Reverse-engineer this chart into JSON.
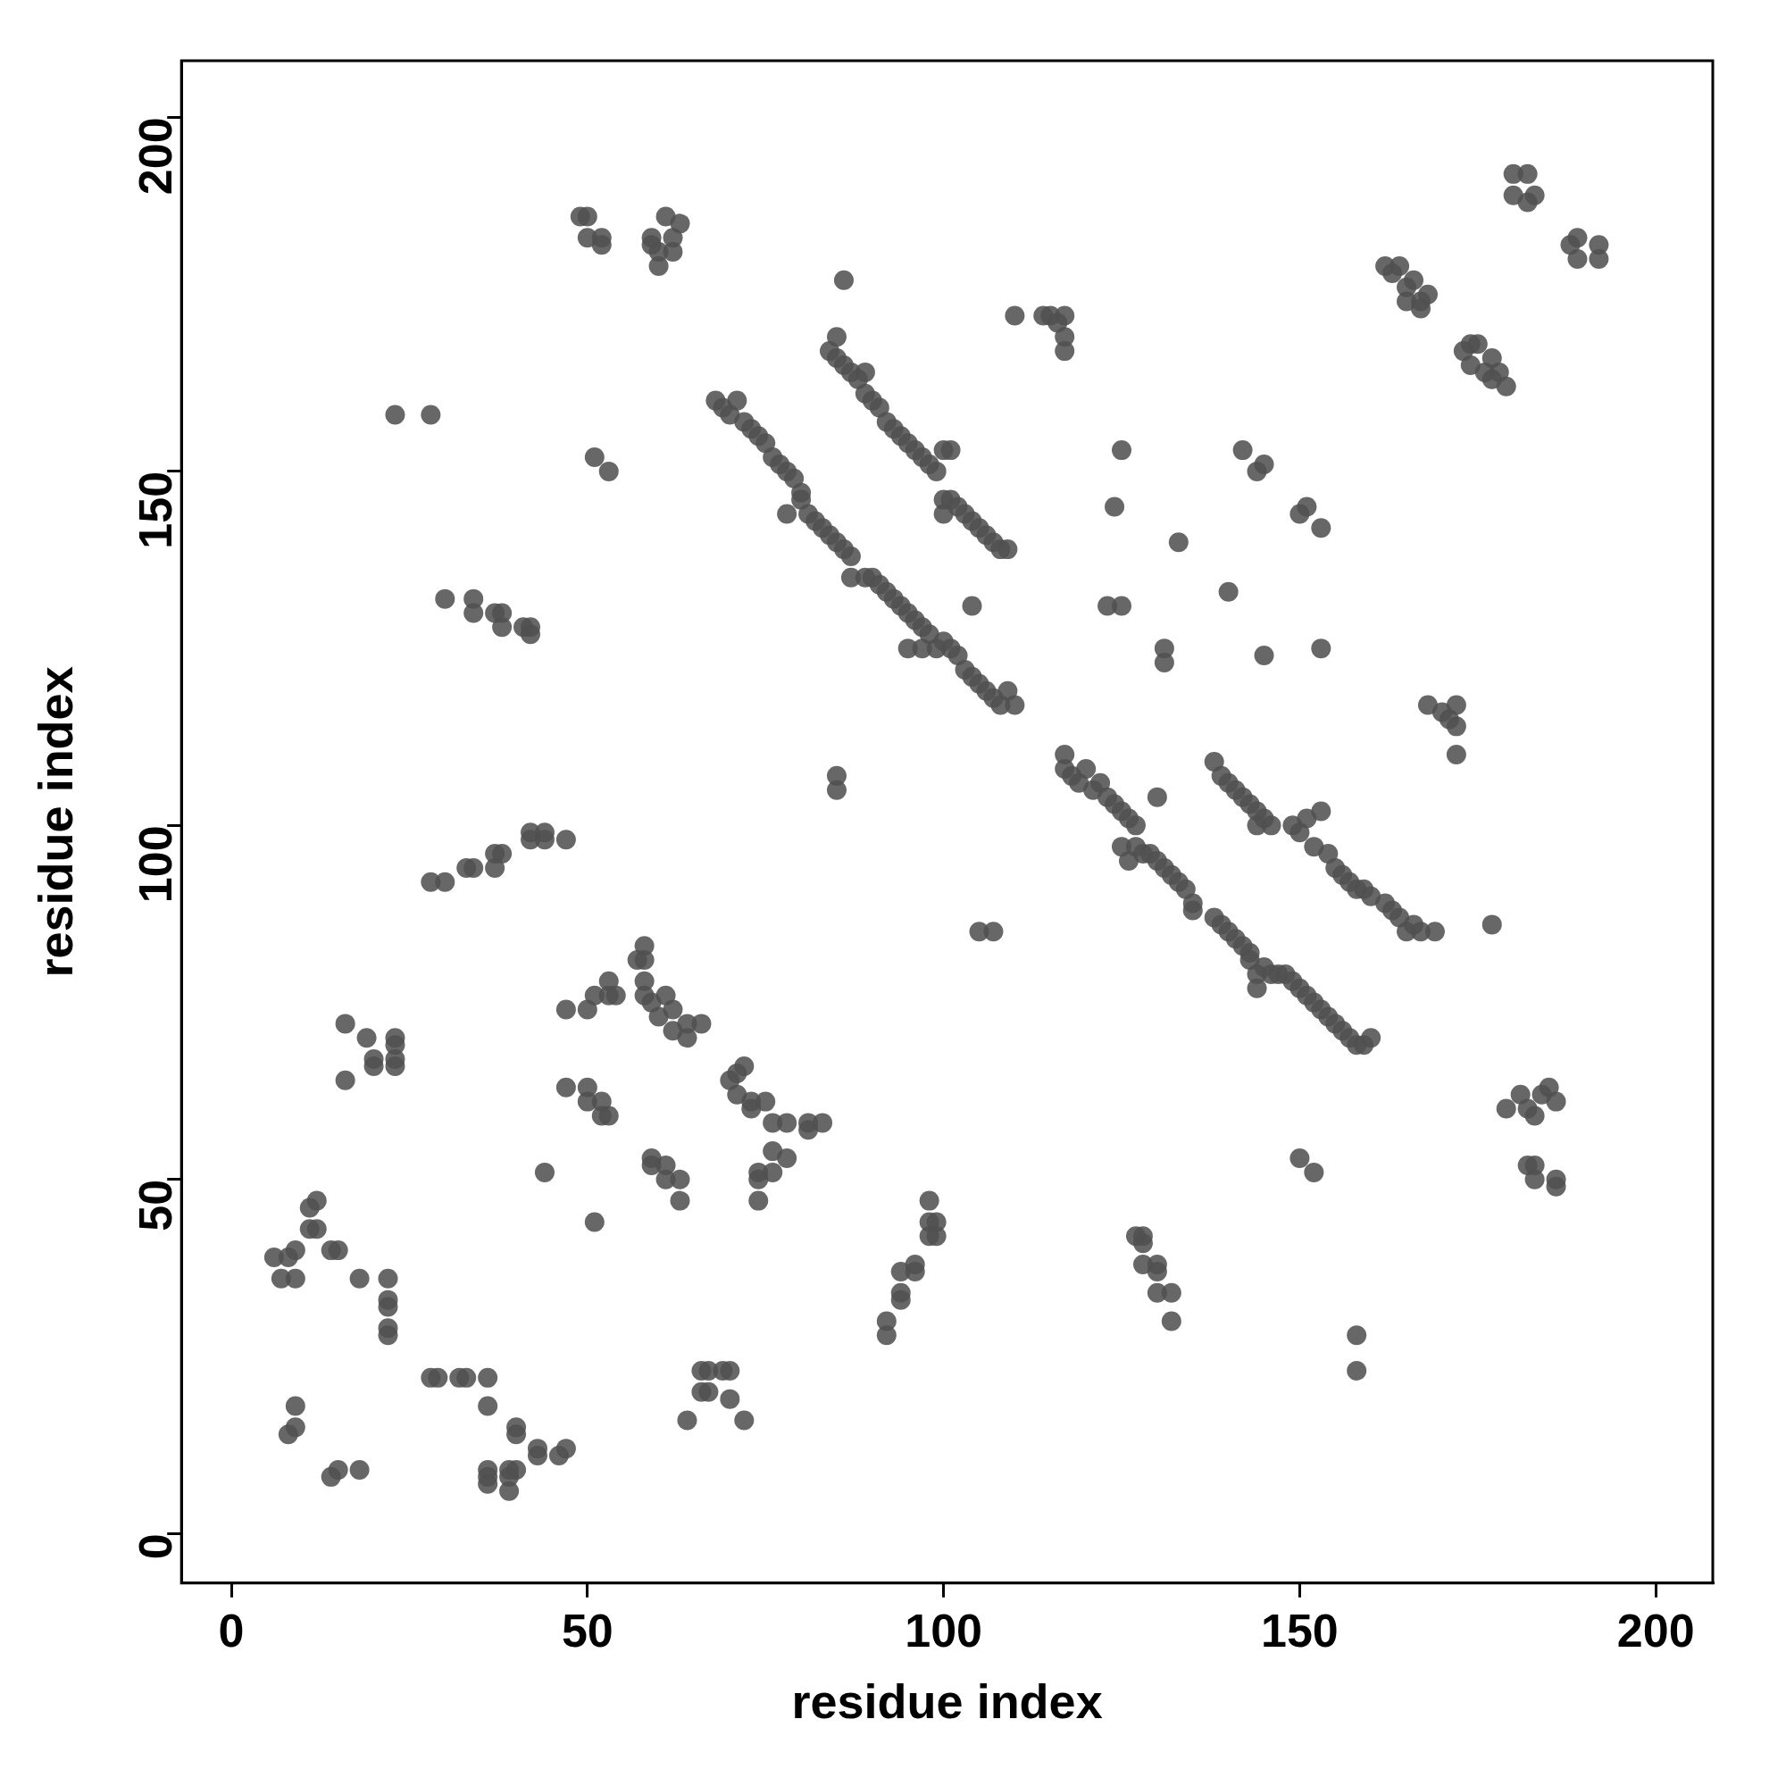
{
  "chart_data": {
    "type": "scatter",
    "xlabel": "residue index",
    "ylabel": "residue index",
    "xlim": [
      -7,
      208
    ],
    "ylim": [
      -7,
      208
    ],
    "xticks": [
      0,
      50,
      100,
      150,
      200
    ],
    "yticks": [
      0,
      50,
      100,
      150,
      200
    ],
    "grid": false,
    "legend": false,
    "marker": "circle",
    "series": [
      {
        "color": "#505050",
        "x": [
          6,
          8,
          9,
          7,
          9,
          11,
          12,
          11,
          12,
          14,
          15,
          16,
          16,
          19,
          20,
          20,
          23,
          23,
          23,
          23,
          18,
          22,
          22,
          22,
          22,
          22,
          9,
          9,
          8,
          14,
          15,
          18,
          28,
          29,
          32,
          33,
          36,
          36,
          36,
          36,
          36,
          39,
          39,
          39,
          40,
          40,
          40,
          43,
          43,
          46,
          47,
          23,
          28,
          30,
          34,
          34,
          37,
          38,
          38,
          41,
          42,
          42,
          28,
          30,
          33,
          34,
          37,
          37,
          38,
          42,
          42,
          44,
          44,
          47,
          44,
          49,
          50,
          50,
          52,
          52,
          59,
          59,
          60,
          60,
          61,
          62,
          62,
          63,
          51,
          53,
          47,
          50,
          51,
          53,
          54,
          53,
          47,
          50,
          50,
          52,
          52,
          53,
          51,
          57,
          58,
          58,
          58,
          58,
          59,
          61,
          60,
          62,
          62,
          64,
          64,
          66,
          59,
          59,
          61,
          61,
          63,
          63,
          70,
          71,
          72,
          71,
          73,
          73,
          75,
          76,
          78,
          74,
          74,
          76,
          76,
          78,
          74,
          81,
          81,
          83,
          66,
          67,
          66,
          67,
          69,
          70,
          64,
          70,
          72,
          92,
          92,
          94,
          94,
          94,
          96,
          96,
          98,
          98,
          99,
          98,
          99,
          68,
          69,
          70,
          71,
          72,
          73,
          74,
          75,
          76,
          77,
          78,
          79,
          80,
          80,
          78,
          81,
          82,
          83,
          84,
          85,
          86,
          87,
          87,
          89,
          90,
          91,
          92,
          93,
          94,
          95,
          96,
          97,
          98,
          99,
          100,
          101,
          102,
          103,
          104,
          105,
          106,
          107,
          108,
          109,
          110,
          95,
          97,
          104,
          84,
          85,
          85,
          86,
          87,
          88,
          89,
          89,
          90,
          91,
          92,
          93,
          94,
          95,
          96,
          97,
          98,
          99,
          100,
          101,
          100,
          100,
          101,
          102,
          103,
          104,
          105,
          106,
          107,
          108,
          109,
          86,
          110,
          114,
          115,
          117,
          116,
          117,
          117,
          85,
          85,
          105,
          107,
          125,
          124,
          123,
          125,
          133,
          131,
          131,
          140,
          145,
          142,
          144,
          145,
          150,
          151,
          153,
          153,
          117,
          117,
          118,
          119,
          120,
          121,
          122,
          123,
          124,
          125,
          126,
          127,
          125,
          126,
          127,
          128,
          129,
          130,
          131,
          132,
          133,
          134,
          135,
          135,
          130,
          138,
          139,
          140,
          141,
          142,
          143,
          143,
          144,
          145,
          146,
          147,
          148,
          149,
          150,
          151,
          152,
          153,
          154,
          155,
          156,
          157,
          158,
          159,
          160,
          144,
          138,
          139,
          140,
          141,
          142,
          143,
          144,
          145,
          146,
          144,
          149,
          150,
          151,
          152,
          153,
          154,
          155,
          156,
          157,
          158,
          159,
          160,
          162,
          163,
          164,
          165,
          166,
          167,
          169,
          177,
          172,
          172,
          171,
          170,
          168,
          172,
          162,
          163,
          164,
          165,
          165,
          166,
          167,
          168,
          167,
          173,
          174,
          175,
          174,
          176,
          177,
          178,
          179,
          177,
          180,
          182,
          180,
          182,
          183,
          188,
          189,
          189,
          192,
          192,
          179,
          181,
          182,
          183,
          184,
          185,
          186,
          182,
          183,
          183,
          186,
          186,
          150,
          152,
          158,
          158,
          127,
          128,
          128,
          128,
          130,
          130,
          130,
          132,
          132
        ],
        "values": [
          39,
          39,
          40,
          36,
          36,
          46,
          47,
          43,
          43,
          40,
          40,
          72,
          64,
          70,
          67,
          66,
          70,
          69,
          66,
          67,
          36,
          36,
          33,
          32,
          29,
          28,
          18,
          15,
          14,
          8,
          9,
          9,
          22,
          22,
          22,
          22,
          22,
          18,
          9,
          8,
          7,
          9,
          8,
          6,
          9,
          15,
          14,
          12,
          11,
          11,
          12,
          158,
          158,
          132,
          132,
          130,
          130,
          130,
          128,
          128,
          127,
          128,
          92,
          92,
          94,
          94,
          94,
          96,
          96,
          99,
          98,
          99,
          98,
          98,
          51,
          186,
          186,
          183,
          183,
          182,
          183,
          182,
          179,
          181,
          186,
          183,
          181,
          185,
          152,
          150,
          74,
          74,
          76,
          76,
          76,
          78,
          63,
          63,
          61,
          61,
          59,
          59,
          44,
          81,
          83,
          81,
          78,
          76,
          75,
          76,
          73,
          74,
          71,
          72,
          70,
          72,
          53,
          52,
          52,
          50,
          50,
          47,
          64,
          65,
          66,
          62,
          61,
          60,
          61,
          58,
          58,
          51,
          50,
          54,
          51,
          53,
          47,
          58,
          57,
          58,
          23,
          23,
          20,
          20,
          23,
          23,
          16,
          19,
          16,
          30,
          28,
          37,
          34,
          33,
          38,
          37,
          47,
          44,
          44,
          42,
          42,
          160,
          159,
          158,
          160,
          157,
          156,
          155,
          154,
          152,
          151,
          150,
          149,
          147,
          146,
          144,
          144,
          143,
          142,
          141,
          140,
          139,
          138,
          135,
          135,
          135,
          134,
          133,
          132,
          131,
          130,
          129,
          128,
          127,
          125,
          126,
          125,
          124,
          122,
          121,
          120,
          119,
          118,
          117,
          119,
          117,
          125,
          125,
          131,
          167,
          169,
          166,
          165,
          164,
          163,
          164,
          161,
          160,
          159,
          157,
          156,
          155,
          154,
          153,
          152,
          151,
          150,
          153,
          153,
          146,
          144,
          146,
          145,
          144,
          143,
          142,
          141,
          140,
          139,
          139,
          177,
          172,
          172,
          172,
          172,
          171,
          169,
          167,
          107,
          105,
          85,
          85,
          153,
          145,
          131,
          131,
          140,
          125,
          123,
          133,
          124,
          153,
          150,
          151,
          144,
          145,
          142,
          125,
          110,
          108,
          107,
          106,
          108,
          105,
          106,
          104,
          103,
          102,
          101,
          100,
          97,
          95,
          97,
          96,
          96,
          95,
          94,
          93,
          92,
          91,
          89,
          88,
          104,
          87,
          86,
          85,
          84,
          83,
          82,
          81,
          79,
          80,
          79,
          79,
          79,
          78,
          77,
          76,
          75,
          74,
          73,
          72,
          71,
          70,
          69,
          69,
          70,
          77,
          109,
          107,
          106,
          105,
          104,
          103,
          102,
          101,
          100,
          100,
          100,
          99,
          101,
          97,
          102,
          96,
          94,
          93,
          92,
          91,
          91,
          90,
          89,
          88,
          87,
          85,
          86,
          85,
          85,
          86,
          110,
          114,
          115,
          116,
          117,
          117,
          179,
          178,
          179,
          176,
          174,
          177,
          174,
          175,
          173,
          167,
          168,
          168,
          165,
          164,
          166,
          164,
          162,
          163,
          192,
          192,
          189,
          188,
          189,
          182,
          183,
          180,
          182,
          180,
          60,
          62,
          60,
          59,
          62,
          63,
          61,
          52,
          52,
          50,
          50,
          49,
          53,
          51,
          28,
          23,
          42,
          42,
          41,
          38,
          38,
          37,
          34,
          34,
          30
        ]
      }
    ]
  }
}
